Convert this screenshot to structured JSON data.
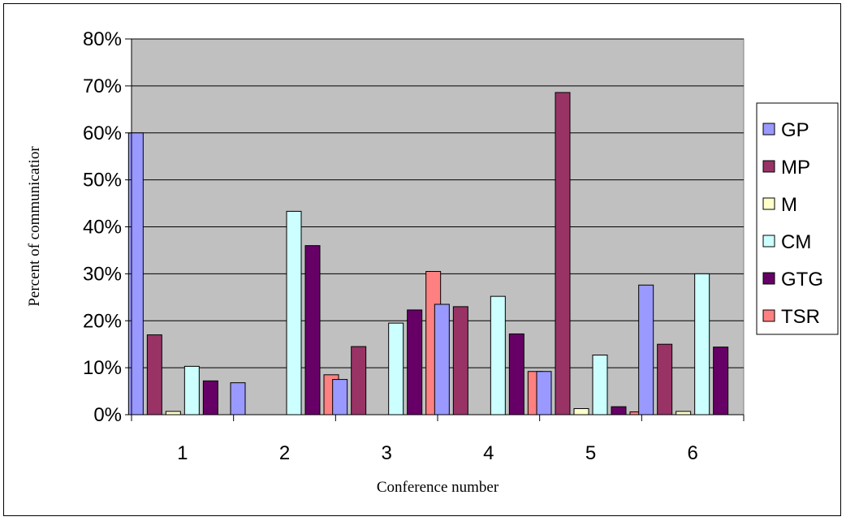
{
  "chart_data": {
    "type": "bar",
    "title": "",
    "xlabel": "Conference number",
    "ylabel": "Percent of communicatior",
    "categories": [
      "1",
      "2",
      "3",
      "4",
      "5",
      "6"
    ],
    "ylim": [
      0,
      80
    ],
    "yticks": [
      0,
      10,
      20,
      30,
      40,
      50,
      60,
      70,
      80
    ],
    "ytick_labels": [
      "0%",
      "10%",
      "20%",
      "30%",
      "40%",
      "50%",
      "60%",
      "70%",
      "80%"
    ],
    "grid": true,
    "plot_background": "#c0c0c0",
    "legend_position": "right",
    "series": [
      {
        "name": "GP",
        "color": "#9999ff",
        "values": [
          60,
          6.8,
          7.5,
          23.5,
          9.2,
          27.6
        ]
      },
      {
        "name": "MP",
        "color": "#993366",
        "values": [
          17,
          0,
          14.5,
          23,
          68.6,
          15
        ]
      },
      {
        "name": "M",
        "color": "#ffffcc",
        "values": [
          0.7,
          0,
          0,
          0,
          1.3,
          0.7
        ]
      },
      {
        "name": "CM",
        "color": "#ccffff",
        "values": [
          10.3,
          43.3,
          19.5,
          25.2,
          12.7,
          30
        ]
      },
      {
        "name": "GTG",
        "color": "#660066",
        "values": [
          7.2,
          36,
          22.3,
          17.2,
          1.7,
          14.4
        ]
      },
      {
        "name": "TSR",
        "color": "#ff8080",
        "values": [
          0,
          8.5,
          30.5,
          9.2,
          0.6,
          0
        ]
      }
    ]
  }
}
